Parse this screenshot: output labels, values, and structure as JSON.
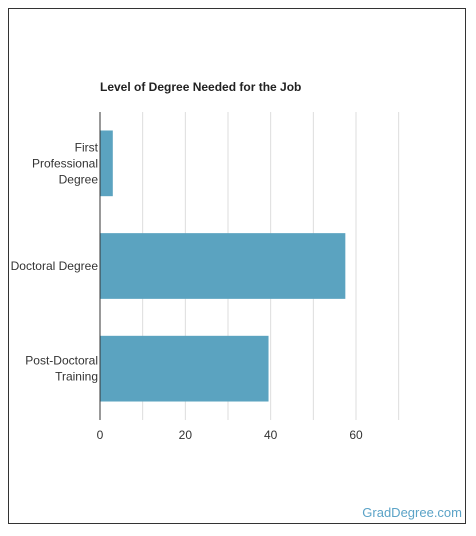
{
  "chart_data": {
    "type": "bar",
    "orientation": "horizontal",
    "title": "Level of Degree Needed for the Job",
    "categories": [
      [
        "First",
        "Professional",
        "Degree"
      ],
      [
        "Doctoral Degree"
      ],
      [
        "Post-Doctoral",
        "Training"
      ]
    ],
    "values": [
      3,
      57.5,
      39.5
    ],
    "xlim": [
      0,
      75
    ],
    "xticks": [
      0,
      20,
      40,
      60
    ],
    "grid": true,
    "bar_color": "#5ba3c0"
  },
  "watermark": "GradDegree.com"
}
